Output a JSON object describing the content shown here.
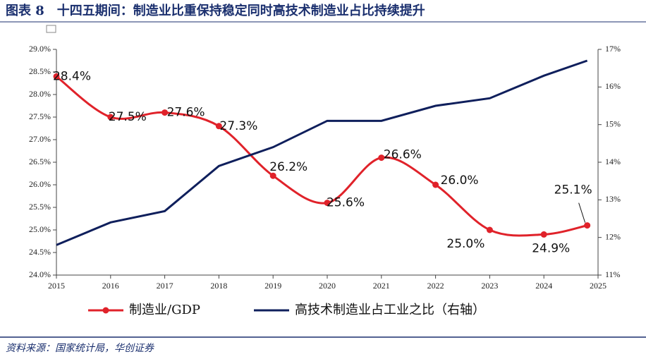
{
  "chart_data": {
    "type": "line",
    "title": "图表 8　十四五期间：制造业比重保持稳定同时高技术制造业占比持续提升",
    "source": "资料来源：国家统计局，华创证券",
    "x": [
      2015,
      2016,
      2017,
      2018,
      2019,
      2020,
      2021,
      2022,
      2023,
      2024,
      2024.8
    ],
    "xlim": [
      2015,
      2025
    ],
    "xticks": [
      2015,
      2016,
      2017,
      2018,
      2019,
      2020,
      2021,
      2022,
      2023,
      2024,
      2025
    ],
    "ylim": [
      24,
      29
    ],
    "yticks": [
      {
        "value": 24,
        "label": "24.0%"
      },
      {
        "value": 24.5,
        "label": "24.5%"
      },
      {
        "value": 25,
        "label": "25.0%"
      },
      {
        "value": 25.5,
        "label": "25.5%"
      },
      {
        "value": 26,
        "label": "26.0%"
      },
      {
        "value": 26.5,
        "label": "26.5%"
      },
      {
        "value": 27,
        "label": "27.0%"
      },
      {
        "value": 27.5,
        "label": "27.5%"
      },
      {
        "value": 28,
        "label": "28.0%"
      },
      {
        "value": 28.5,
        "label": "28.5%"
      },
      {
        "value": 29,
        "label": "29.0%"
      }
    ],
    "y2lim": [
      11,
      17
    ],
    "y2ticks": [
      {
        "value": 11,
        "label": "11%"
      },
      {
        "value": 12,
        "label": "12%"
      },
      {
        "value": 13,
        "label": "13%"
      },
      {
        "value": 14,
        "label": "14%"
      },
      {
        "value": 15,
        "label": "15%"
      },
      {
        "value": 16,
        "label": "16%"
      },
      {
        "value": 17,
        "label": "17%"
      }
    ],
    "series": [
      {
        "name": "制造业/GDP",
        "color": "#e0222a",
        "smooth": true,
        "values": [
          28.4,
          27.5,
          27.6,
          27.3,
          26.2,
          25.6,
          26.6,
          26.0,
          25.0,
          24.9,
          25.1
        ],
        "value_labels": [
          "28.4%",
          "27.5%",
          "27.6%",
          "27.3%",
          "26.2%",
          "25.6%",
          "26.6%",
          "26.0%",
          "25.0%",
          "24.9%",
          "25.1%"
        ]
      },
      {
        "name": "高技术制造业占工业之比（右轴）",
        "color": "#0f1f5c",
        "axis": "y2",
        "values": [
          11.8,
          12.4,
          12.7,
          13.9,
          14.4,
          15.1,
          15.1,
          15.5,
          15.7,
          16.3,
          16.7
        ]
      }
    ]
  }
}
